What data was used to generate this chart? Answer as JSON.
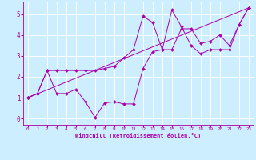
{
  "bg_color": "#cceeff",
  "grid_color": "#ffffff",
  "line_color": "#aa00aa",
  "marker_color": "#aa00aa",
  "xlabel": "Windchill (Refroidissement éolien,°C)",
  "xlim": [
    -0.5,
    23.5
  ],
  "ylim": [
    -0.3,
    5.6
  ],
  "yticks": [
    0,
    1,
    2,
    3,
    4,
    5
  ],
  "xticks": [
    0,
    1,
    2,
    3,
    4,
    5,
    6,
    7,
    8,
    9,
    10,
    11,
    12,
    13,
    14,
    15,
    16,
    17,
    18,
    19,
    20,
    21,
    22,
    23
  ],
  "series1_x": [
    0,
    1,
    2,
    3,
    4,
    5,
    6,
    7,
    8,
    9,
    10,
    11,
    12,
    13,
    14,
    15,
    16,
    17,
    18,
    19,
    20,
    21,
    22,
    23
  ],
  "series1_y": [
    1.0,
    1.2,
    2.3,
    1.2,
    1.2,
    1.4,
    0.8,
    0.05,
    0.75,
    0.8,
    0.7,
    0.7,
    2.4,
    3.2,
    3.3,
    3.3,
    4.3,
    4.3,
    3.6,
    3.7,
    4.0,
    3.5,
    4.5,
    5.3
  ],
  "series2_x": [
    0,
    1,
    2,
    3,
    4,
    5,
    6,
    7,
    8,
    9,
    10,
    11,
    12,
    13,
    14,
    15,
    16,
    17,
    18,
    19,
    20,
    21,
    22,
    23
  ],
  "series2_y": [
    1.0,
    1.2,
    2.3,
    2.3,
    2.3,
    2.3,
    2.3,
    2.3,
    2.4,
    2.5,
    2.9,
    3.3,
    4.9,
    4.6,
    3.3,
    5.2,
    4.4,
    3.5,
    3.1,
    3.3,
    3.3,
    3.3,
    4.5,
    5.3
  ],
  "series3_x": [
    0,
    23
  ],
  "series3_y": [
    1.0,
    5.3
  ]
}
